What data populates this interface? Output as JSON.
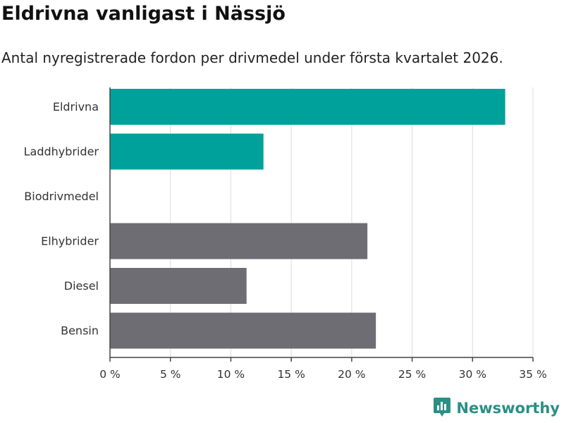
{
  "colors": {
    "highlight": "#00a19a",
    "neutral": "#6e6d73",
    "grid": "#dddddd",
    "axis": "#444444",
    "brand": "#2b8f86"
  },
  "brand": {
    "name": "Newsworthy",
    "logo_icon": "newsworthy-chart-icon"
  },
  "chart_data": {
    "type": "bar",
    "orientation": "horizontal",
    "title": "Eldrivna vanligast i Nässjö",
    "subtitle": "Antal nyregistrerade fordon per drivmedel under första kvartalet 2026.",
    "categories": [
      "Eldrivna",
      "Laddhybrider",
      "Biodrivmedel",
      "Elhybrider",
      "Diesel",
      "Bensin"
    ],
    "values": [
      32.7,
      12.7,
      0,
      21.3,
      11.3,
      22.0
    ],
    "highlighted": [
      true,
      true,
      true,
      false,
      false,
      false
    ],
    "unit": "%",
    "xlim": [
      0,
      35
    ],
    "xticks": [
      0,
      5,
      10,
      15,
      20,
      25,
      30,
      35
    ],
    "xtick_labels": [
      "0 %",
      "5 %",
      "10 %",
      "15 %",
      "20 %",
      "25 %",
      "30 %",
      "35 %"
    ],
    "xlabel": "",
    "ylabel": "",
    "grid": true
  }
}
